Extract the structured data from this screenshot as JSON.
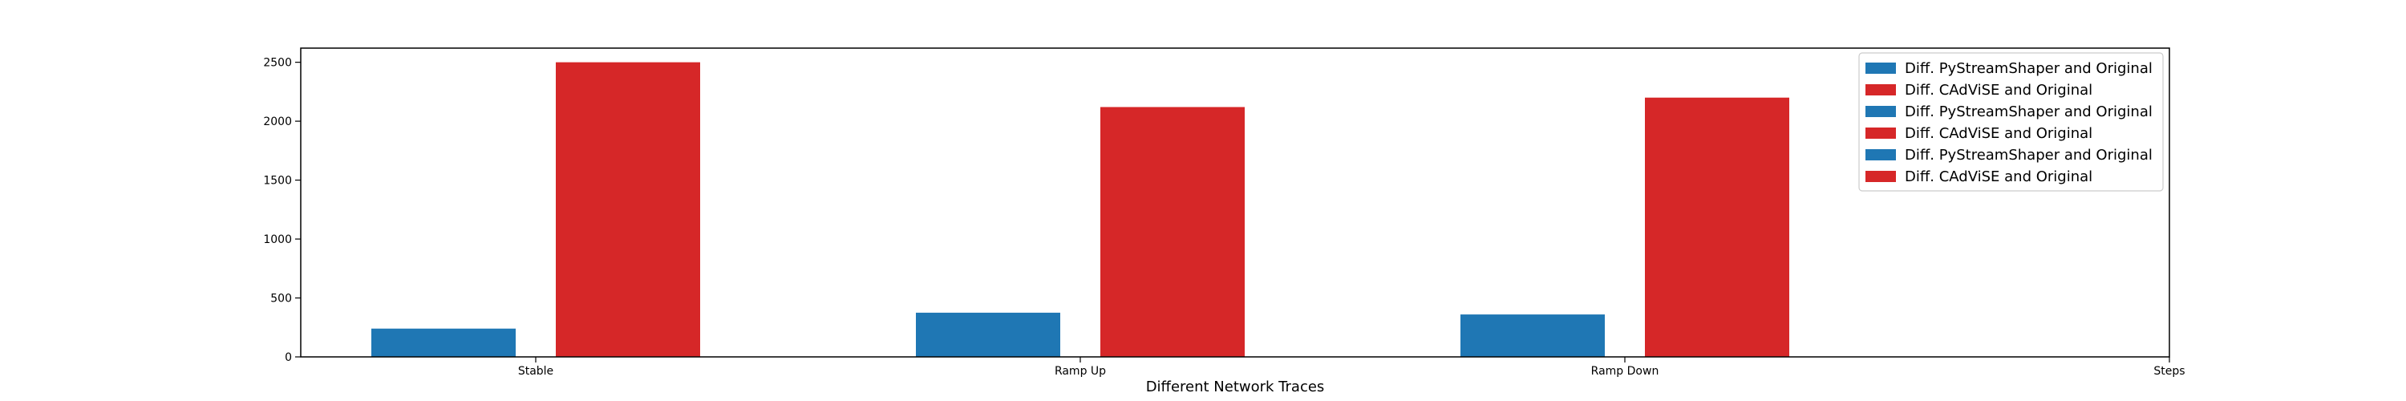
{
  "chart_data": {
    "type": "bar",
    "title": "",
    "xlabel": "Different Network Traces",
    "ylabel": "",
    "x_tick_labels": [
      "Stable",
      "Ramp Up",
      "Ramp Down",
      "Steps"
    ],
    "ylim": [
      0,
      2620
    ],
    "yticks": [
      0,
      500,
      1000,
      1500,
      2000,
      2500
    ],
    "grid": false,
    "legend_position": "top-right",
    "bars": [
      {
        "category": "Stable",
        "series": "Diff. PyStreamShaper and Original",
        "value": 240
      },
      {
        "category": "Stable",
        "series": "Diff. CAdViSE and Original",
        "value": 2500
      },
      {
        "category": "Ramp Up",
        "series": "Diff. PyStreamShaper and Original",
        "value": 375
      },
      {
        "category": "Ramp Up",
        "series": "Diff. CAdViSE and Original",
        "value": 2120
      },
      {
        "category": "Ramp Down",
        "series": "Diff. PyStreamShaper and Original",
        "value": 360
      },
      {
        "category": "Ramp Down",
        "series": "Diff. CAdViSE and Original",
        "value": 2200
      }
    ],
    "legend": [
      {
        "label": "Diff. PyStreamShaper and Original",
        "color": "#1f77b4"
      },
      {
        "label": "Diff. CAdViSE and Original",
        "color": "#d62728"
      },
      {
        "label": "Diff. PyStreamShaper and Original",
        "color": "#1f77b4"
      },
      {
        "label": "Diff. CAdViSE and Original",
        "color": "#d62728"
      },
      {
        "label": "Diff. PyStreamShaper and Original",
        "color": "#1f77b4"
      },
      {
        "label": "Diff. CAdViSE and Original",
        "color": "#d62728"
      }
    ],
    "colors": {
      "PyStreamShaper": "#1f77b4",
      "CAdViSE": "#d62728"
    }
  }
}
